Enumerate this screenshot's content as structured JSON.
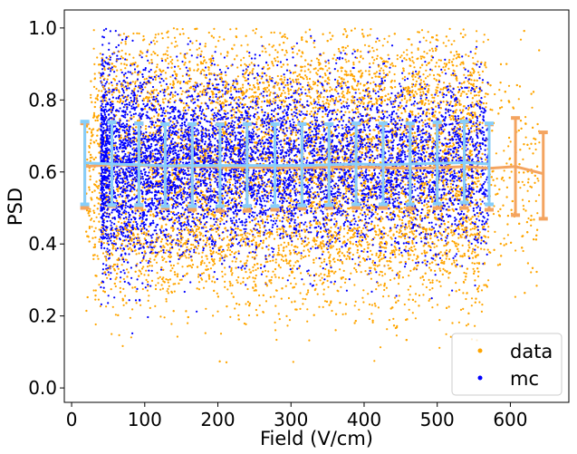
{
  "chart_data": {
    "type": "scatter",
    "title": "",
    "xlabel": "Field (V/cm)",
    "ylabel": "PSD",
    "xlim": [
      -10,
      680
    ],
    "ylim": [
      -0.04,
      1.05
    ],
    "xticks": [
      0,
      100,
      200,
      300,
      400,
      500,
      600
    ],
    "yticks": [
      0.0,
      0.2,
      0.4,
      0.6,
      0.8,
      1.0
    ],
    "grid": false,
    "legend": {
      "placement": "bottom-right",
      "entries": [
        {
          "label": "data",
          "color": "#FFA500"
        },
        {
          "label": "mc",
          "color": "#0000FF"
        }
      ]
    },
    "series": [
      {
        "name": "data",
        "kind": "scatter",
        "color": "#FFA500",
        "x_range": [
          20,
          660
        ],
        "y_range": [
          0.02,
          1.0
        ],
        "point_density_note_fields": null
      },
      {
        "name": "mc",
        "kind": "scatter",
        "color": "#0000FF",
        "x_range": [
          40,
          570
        ],
        "y_range": [
          0.15,
          1.0
        ]
      }
    ],
    "profiles": [
      {
        "series": "data",
        "color": "#F4A460",
        "x": [
          18,
          55,
          92,
          128,
          165,
          203,
          240,
          278,
          315,
          352,
          389,
          426,
          463,
          500,
          537,
          571,
          607,
          645
        ],
        "mean": [
          0.615,
          0.62,
          0.618,
          0.616,
          0.615,
          0.614,
          0.613,
          0.612,
          0.612,
          0.613,
          0.614,
          0.612,
          0.61,
          0.612,
          0.615,
          0.61,
          0.615,
          0.595
        ],
        "low": [
          0.5,
          0.505,
          0.5,
          0.5,
          0.495,
          0.492,
          0.492,
          0.495,
          0.498,
          0.5,
          0.5,
          0.5,
          0.498,
          0.5,
          0.5,
          0.495,
          0.48,
          0.47
        ],
        "high": [
          0.735,
          0.738,
          0.735,
          0.733,
          0.732,
          0.733,
          0.732,
          0.733,
          0.733,
          0.733,
          0.732,
          0.73,
          0.728,
          0.73,
          0.738,
          0.732,
          0.75,
          0.71
        ]
      },
      {
        "series": "mc",
        "color": "#87CEFA",
        "x": [
          18,
          55,
          92,
          128,
          165,
          203,
          240,
          278,
          315,
          352,
          389,
          426,
          463,
          500,
          537,
          571
        ],
        "mean": [
          0.625,
          0.622,
          0.62,
          0.617,
          0.618,
          0.618,
          0.618,
          0.618,
          0.618,
          0.62,
          0.622,
          0.62,
          0.622,
          0.624,
          0.626,
          0.622
        ],
        "low": [
          0.51,
          0.508,
          0.508,
          0.505,
          0.505,
          0.505,
          0.505,
          0.505,
          0.507,
          0.508,
          0.51,
          0.51,
          0.51,
          0.512,
          0.515,
          0.51
        ],
        "high": [
          0.74,
          0.738,
          0.735,
          0.733,
          0.733,
          0.732,
          0.733,
          0.733,
          0.733,
          0.733,
          0.735,
          0.735,
          0.735,
          0.738,
          0.74,
          0.735
        ]
      }
    ]
  }
}
